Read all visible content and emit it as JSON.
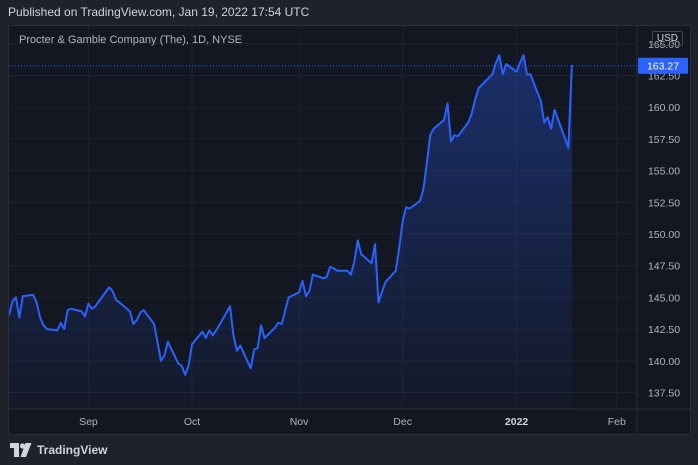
{
  "header": {
    "published": "Published on TradingView.com, Jan 19, 2022 17:54 UTC"
  },
  "legend": {
    "symbol": "Procter & Gamble Company (The), 1D, NYSE"
  },
  "currency": "USD",
  "footer": {
    "brand": "TradingView",
    "logo_icon": "tradingview-logo-icon"
  },
  "colors": {
    "background": "#131722",
    "grid": "#1e222d",
    "line": "#2962ff",
    "price_tag": "#2962ff",
    "text": "#b2b5be"
  },
  "chart_data": {
    "type": "area",
    "title": "Procter & Gamble Company (The), 1D, NYSE",
    "ylabel": "USD",
    "ylim": [
      136.2,
      166.4
    ],
    "grid": true,
    "last_price": 163.27,
    "last_price_label": "163.27",
    "y_ticks": [
      "165.00",
      "162.50",
      "160.00",
      "157.50",
      "155.00",
      "152.50",
      "150.00",
      "147.50",
      "145.00",
      "142.50",
      "140.00",
      "137.50"
    ],
    "x_ticks": [
      {
        "label": "Sep",
        "x": "2021-09-01"
      },
      {
        "label": "Oct",
        "x": "2021-10-01"
      },
      {
        "label": "Nov",
        "x": "2021-11-01"
      },
      {
        "label": "Dec",
        "x": "2021-12-01"
      },
      {
        "label": "2022",
        "x": "2022-01-03",
        "bold": true
      },
      {
        "label": "Feb",
        "x": "2022-02-01"
      }
    ],
    "series": [
      {
        "x": [
          "2021-08-09",
          "2021-08-10",
          "2021-08-11",
          "2021-08-12",
          "2021-08-13",
          "2021-08-16",
          "2021-08-17",
          "2021-08-18",
          "2021-08-19",
          "2021-08-20",
          "2021-08-23",
          "2021-08-24",
          "2021-08-25",
          "2021-08-26",
          "2021-08-27",
          "2021-08-30",
          "2021-08-31",
          "2021-09-01",
          "2021-09-02",
          "2021-09-03",
          "2021-09-07",
          "2021-09-08",
          "2021-09-09",
          "2021-09-10",
          "2021-09-13",
          "2021-09-14",
          "2021-09-15",
          "2021-09-16",
          "2021-09-17",
          "2021-09-20",
          "2021-09-21",
          "2021-09-22",
          "2021-09-23",
          "2021-09-24",
          "2021-09-27",
          "2021-09-28",
          "2021-09-29",
          "2021-09-30",
          "2021-10-01",
          "2021-10-04",
          "2021-10-05",
          "2021-10-06",
          "2021-10-07",
          "2021-10-08",
          "2021-10-11",
          "2021-10-12",
          "2021-10-13",
          "2021-10-14",
          "2021-10-15",
          "2021-10-18",
          "2021-10-19",
          "2021-10-20",
          "2021-10-21",
          "2021-10-22",
          "2021-10-25",
          "2021-10-26",
          "2021-10-27",
          "2021-10-28",
          "2021-10-29",
          "2021-11-01",
          "2021-11-02",
          "2021-11-03",
          "2021-11-04",
          "2021-11-05",
          "2021-11-08",
          "2021-11-09",
          "2021-11-10",
          "2021-11-11",
          "2021-11-12",
          "2021-11-15",
          "2021-11-16",
          "2021-11-17",
          "2021-11-18",
          "2021-11-19",
          "2021-11-22",
          "2021-11-23",
          "2021-11-24",
          "2021-11-26",
          "2021-11-29",
          "2021-11-30",
          "2021-12-01",
          "2021-12-02",
          "2021-12-03",
          "2021-12-06",
          "2021-12-07",
          "2021-12-08",
          "2021-12-09",
          "2021-12-10",
          "2021-12-13",
          "2021-12-14",
          "2021-12-15",
          "2021-12-16",
          "2021-12-17",
          "2021-12-20",
          "2021-12-21",
          "2021-12-22",
          "2021-12-23",
          "2021-12-27",
          "2021-12-28",
          "2021-12-29",
          "2021-12-30",
          "2021-12-31",
          "2022-01-03",
          "2022-01-04",
          "2022-01-05",
          "2022-01-06",
          "2022-01-07",
          "2022-01-10",
          "2022-01-11",
          "2022-01-12",
          "2022-01-13",
          "2022-01-14",
          "2022-01-18",
          "2022-01-19"
        ],
        "values": [
          143.6,
          144.7,
          145.0,
          143.4,
          145.1,
          145.2,
          144.6,
          143.4,
          142.8,
          142.5,
          142.4,
          143.0,
          142.5,
          144.0,
          144.1,
          143.9,
          143.5,
          144.5,
          144.1,
          144.3,
          145.8,
          145.5,
          144.8,
          144.6,
          143.9,
          142.9,
          143.2,
          143.8,
          144.0,
          142.9,
          141.5,
          140.0,
          140.4,
          141.5,
          139.8,
          139.6,
          138.9,
          139.6,
          141.3,
          142.3,
          141.8,
          142.4,
          142.0,
          142.4,
          143.8,
          144.3,
          142.0,
          140.8,
          141.2,
          139.4,
          140.9,
          141.0,
          142.8,
          141.8,
          142.6,
          143.0,
          142.9,
          144.0,
          145.0,
          145.4,
          146.3,
          145.1,
          145.5,
          146.8,
          146.5,
          146.6,
          147.4,
          147.3,
          147.1,
          147.1,
          146.8,
          147.8,
          149.5,
          148.4,
          147.7,
          149.2,
          144.6,
          146.2,
          147.1,
          148.9,
          151.0,
          152.1,
          152.0,
          152.6,
          153.5,
          155.6,
          157.8,
          158.3,
          159.0,
          160.3,
          157.3,
          157.8,
          157.7,
          158.8,
          159.5,
          160.6,
          161.5,
          162.6,
          163.5,
          164.1,
          162.6,
          163.4,
          162.8,
          163.5,
          164.1,
          162.6,
          162.6,
          160.5,
          158.8,
          159.2,
          158.3,
          159.8,
          156.8,
          163.27
        ]
      }
    ]
  }
}
